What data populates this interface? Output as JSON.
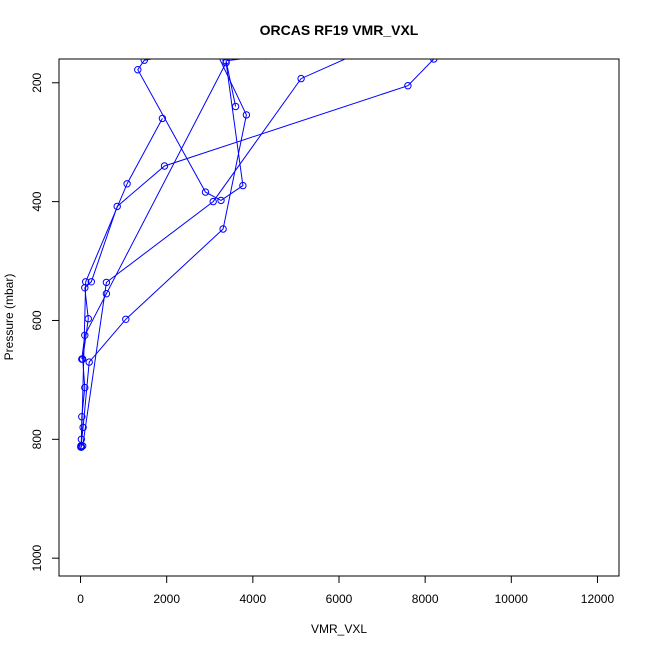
{
  "chart_data": {
    "type": "line",
    "title": "ORCAS RF19 VMR_VXL",
    "xlabel": "VMR_VXL",
    "ylabel": "Pressure (mbar)",
    "xlim": [
      -500,
      12500
    ],
    "ylim": [
      1030,
      160
    ],
    "y_inverted": true,
    "x_ticks": [
      0,
      2000,
      4000,
      6000,
      8000,
      10000,
      12000
    ],
    "y_ticks": [
      200,
      400,
      600,
      800,
      1000
    ],
    "grid": false,
    "legend": "none",
    "colors": {
      "series": "#0000ff",
      "axis": "#000000"
    },
    "series": [
      {
        "x": [
          8200,
          7600,
          1950,
          850,
          250,
          100,
          180,
          50,
          100,
          30,
          20,
          10,
          20,
          5
        ],
        "y": [
          160,
          205,
          340,
          408,
          535,
          545,
          597,
          665,
          713,
          762,
          800,
          811,
          813,
          813
        ]
      },
      {
        "x": [
          2500,
          1480,
          1330,
          2900,
          3260,
          3770,
          3380,
          600,
          100,
          30
        ],
        "y": [
          150,
          162,
          178,
          384,
          398,
          373,
          166,
          555,
          625,
          665
        ]
      },
      {
        "x": [
          2900,
          3850,
          3310,
          1050,
          200,
          60,
          10
        ],
        "y": [
          110,
          254,
          446,
          598,
          670,
          780,
          811
        ]
      },
      {
        "x": [
          6300,
          5120,
          3080,
          600,
          50
        ],
        "y": [
          155,
          193,
          400,
          536,
          811
        ]
      },
      {
        "x": [
          1900,
          1080,
          120,
          20
        ],
        "y": [
          260,
          370,
          535,
          813
        ]
      },
      {
        "x": [
          4300,
          3380,
          3600
        ],
        "y": [
          155,
          163,
          240
        ]
      }
    ]
  }
}
